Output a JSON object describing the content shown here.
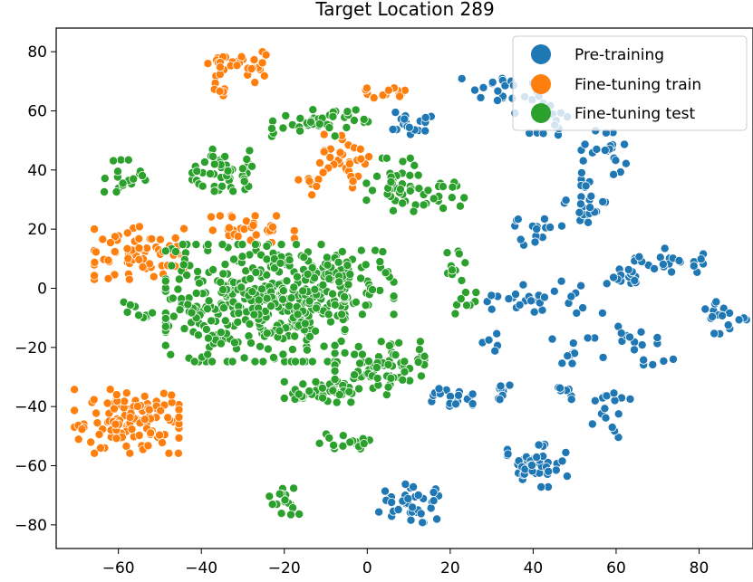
{
  "chart_data": {
    "type": "scatter",
    "title": "Target Location 289",
    "xlabel": "",
    "ylabel": "",
    "xlim": [
      -75,
      93
    ],
    "ylim": [
      -88,
      88
    ],
    "x_ticks": [
      -60,
      -40,
      -20,
      0,
      20,
      40,
      60,
      80
    ],
    "y_ticks": [
      80,
      60,
      40,
      20,
      0,
      -20,
      -40,
      -60,
      -80
    ],
    "x_tick_labels": [
      "−60",
      "−40",
      "−20",
      "0",
      "20",
      "40",
      "60",
      "80"
    ],
    "y_tick_labels": [
      "80",
      "60",
      "40",
      "20",
      "0",
      "−20",
      "−40",
      "−60",
      "−80"
    ],
    "grid": false,
    "legend_position": "top-right",
    "series": [
      {
        "name": "Pre-training",
        "color": "#1f77b4",
        "clusters": [
          {
            "center": [
              10,
              55
            ],
            "spread": [
              3,
              2.5
            ],
            "count": 18
          },
          {
            "center": [
              30,
              68
            ],
            "spread": [
              4,
              2.5
            ],
            "count": 14
          },
          {
            "center": [
              40,
              65
            ],
            "spread": [
              4,
              4
            ],
            "count": 12
          },
          {
            "center": [
              45,
              55
            ],
            "spread": [
              4,
              3
            ],
            "count": 10
          },
          {
            "center": [
              57,
              45
            ],
            "spread": [
              3,
              5
            ],
            "count": 22
          },
          {
            "center": [
              52,
              27
            ],
            "spread": [
              3,
              5
            ],
            "count": 24
          },
          {
            "center": [
              40,
              20
            ],
            "spread": [
              3,
              3
            ],
            "count": 14
          },
          {
            "center": [
              35,
              -2
            ],
            "spread": [
              4,
              3
            ],
            "count": 14
          },
          {
            "center": [
              48,
              -3
            ],
            "spread": [
              5,
              3
            ],
            "count": 14
          },
          {
            "center": [
              62,
              4
            ],
            "spread": [
              3,
              1.5
            ],
            "count": 14
          },
          {
            "center": [
              72,
              9
            ],
            "spread": [
              5,
              2.5
            ],
            "count": 24
          },
          {
            "center": [
              86,
              -10
            ],
            "spread": [
              3,
              3
            ],
            "count": 18
          },
          {
            "center": [
              63,
              -18
            ],
            "spread": [
              4,
              3
            ],
            "count": 12
          },
          {
            "center": [
              72,
              -25
            ],
            "spread": [
              3,
              1
            ],
            "count": 5
          },
          {
            "center": [
              50,
              -24
            ],
            "spread": [
              3,
              4
            ],
            "count": 10
          },
          {
            "center": [
              30,
              -18
            ],
            "spread": [
              2,
              2
            ],
            "count": 6
          },
          {
            "center": [
              20,
              -37
            ],
            "spread": [
              3,
              2.5
            ],
            "count": 18
          },
          {
            "center": [
              33,
              -34
            ],
            "spread": [
              2,
              2.5
            ],
            "count": 8
          },
          {
            "center": [
              47,
              -35
            ],
            "spread": [
              2,
              1.5
            ],
            "count": 8
          },
          {
            "center": [
              58,
              -37
            ],
            "spread": [
              3,
              1
            ],
            "count": 8
          },
          {
            "center": [
              57,
              -45
            ],
            "spread": [
              2,
              3
            ],
            "count": 8
          },
          {
            "center": [
              41,
              -60
            ],
            "spread": [
              4,
              4
            ],
            "count": 45
          },
          {
            "center": [
              10,
              -72
            ],
            "spread": [
              4,
              4
            ],
            "count": 36
          }
        ]
      },
      {
        "name": "Fine-tuning train",
        "color": "#ff7f0e",
        "clusters": [
          {
            "center": [
              -30,
              75
            ],
            "spread": [
              5,
              3
            ],
            "count": 32
          },
          {
            "center": [
              -35,
              67
            ],
            "spread": [
              1.5,
              2
            ],
            "count": 6
          },
          {
            "center": [
              5,
              67
            ],
            "spread": [
              4,
              1.5
            ],
            "count": 14
          },
          {
            "center": [
              -5,
              43
            ],
            "spread": [
              3,
              5
            ],
            "count": 30
          },
          {
            "center": [
              -13,
              37
            ],
            "spread": [
              2,
              3
            ],
            "count": 10
          },
          {
            "center": [
              -28,
              20
            ],
            "spread": [
              6,
              2.5
            ],
            "count": 34
          },
          {
            "center": [
              -55,
              12
            ],
            "spread": [
              6,
              5
            ],
            "count": 70
          },
          {
            "center": [
              -58,
              -45
            ],
            "spread": [
              7,
              6
            ],
            "count": 120
          }
        ]
      },
      {
        "name": "Fine-tuning test",
        "color": "#2ca02c",
        "clusters": [
          {
            "center": [
              -27,
              -5
            ],
            "spread": [
              12,
              11
            ],
            "count": 380
          },
          {
            "center": [
              -8,
              2
            ],
            "spread": [
              8,
              6
            ],
            "count": 90
          },
          {
            "center": [
              -11,
              -35
            ],
            "spread": [
              5,
              2
            ],
            "count": 40
          },
          {
            "center": [
              3,
              -27
            ],
            "spread": [
              6,
              5
            ],
            "count": 80
          },
          {
            "center": [
              -35,
              40
            ],
            "spread": [
              4,
              4
            ],
            "count": 50
          },
          {
            "center": [
              -58,
              38
            ],
            "spread": [
              3,
              3
            ],
            "count": 18
          },
          {
            "center": [
              -14,
              55
            ],
            "spread": [
              5,
              2
            ],
            "count": 22
          },
          {
            "center": [
              -7,
              58
            ],
            "spread": [
              4,
              2
            ],
            "count": 16
          },
          {
            "center": [
              7,
              35
            ],
            "spread": [
              4,
              5
            ],
            "count": 40
          },
          {
            "center": [
              19,
              31
            ],
            "spread": [
              3,
              3
            ],
            "count": 16
          },
          {
            "center": [
              24,
              -5
            ],
            "spread": [
              2,
              2
            ],
            "count": 8
          },
          {
            "center": [
              20,
              8
            ],
            "spread": [
              2,
              3
            ],
            "count": 10
          },
          {
            "center": [
              -5,
              -52
            ],
            "spread": [
              4,
              1.5
            ],
            "count": 18
          },
          {
            "center": [
              -20,
              -73
            ],
            "spread": [
              2,
              3
            ],
            "count": 16
          },
          {
            "center": [
              -55,
              -8
            ],
            "spread": [
              3,
              2
            ],
            "count": 10
          }
        ]
      }
    ]
  }
}
